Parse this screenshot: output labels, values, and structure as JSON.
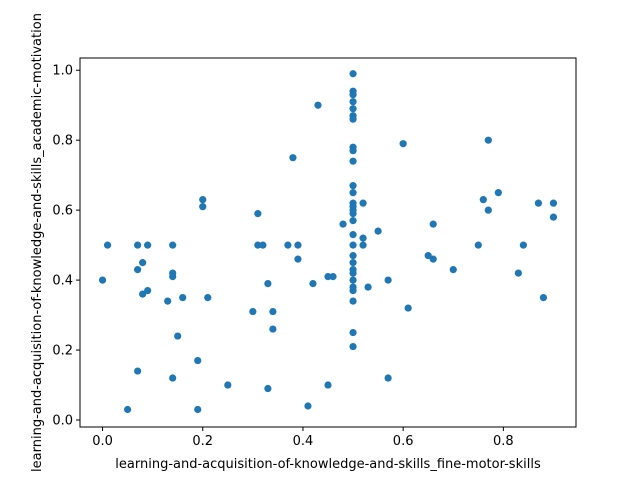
{
  "chart_data": {
    "type": "scatter",
    "xlabel": "learning-and-acquisition-of-knowledge-and-skills_fine-motor-skills",
    "ylabel": "learning-and-acquisition-of-knowledge-and-skills_academic-motivation",
    "xlim": [
      -0.045,
      0.945
    ],
    "ylim": [
      -0.02,
      1.035
    ],
    "x_ticks": [
      "0.0",
      "0.2",
      "0.4",
      "0.6",
      "0.8"
    ],
    "y_ticks": [
      "0.0",
      "0.2",
      "0.4",
      "0.6",
      "0.8",
      "1.0"
    ],
    "grid": false,
    "marker_color": "#1f77b4",
    "points": [
      [
        0.0,
        0.4
      ],
      [
        0.01,
        0.5
      ],
      [
        0.05,
        0.03
      ],
      [
        0.07,
        0.5
      ],
      [
        0.07,
        0.43
      ],
      [
        0.07,
        0.14
      ],
      [
        0.08,
        0.45
      ],
      [
        0.08,
        0.36
      ],
      [
        0.09,
        0.5
      ],
      [
        0.09,
        0.37
      ],
      [
        0.13,
        0.34
      ],
      [
        0.14,
        0.5
      ],
      [
        0.14,
        0.42
      ],
      [
        0.14,
        0.41
      ],
      [
        0.14,
        0.12
      ],
      [
        0.15,
        0.24
      ],
      [
        0.16,
        0.35
      ],
      [
        0.19,
        0.17
      ],
      [
        0.19,
        0.03
      ],
      [
        0.2,
        0.63
      ],
      [
        0.2,
        0.61
      ],
      [
        0.21,
        0.35
      ],
      [
        0.25,
        0.1
      ],
      [
        0.3,
        0.31
      ],
      [
        0.31,
        0.59
      ],
      [
        0.31,
        0.5
      ],
      [
        0.32,
        0.5
      ],
      [
        0.33,
        0.39
      ],
      [
        0.33,
        0.09
      ],
      [
        0.34,
        0.31
      ],
      [
        0.34,
        0.26
      ],
      [
        0.37,
        0.5
      ],
      [
        0.38,
        0.75
      ],
      [
        0.39,
        0.5
      ],
      [
        0.39,
        0.46
      ],
      [
        0.41,
        0.04
      ],
      [
        0.42,
        0.39
      ],
      [
        0.43,
        0.9
      ],
      [
        0.45,
        0.41
      ],
      [
        0.45,
        0.1
      ],
      [
        0.46,
        0.41
      ],
      [
        0.48,
        0.56
      ],
      [
        0.5,
        0.99
      ],
      [
        0.5,
        0.94
      ],
      [
        0.5,
        0.93
      ],
      [
        0.5,
        0.91
      ],
      [
        0.5,
        0.89
      ],
      [
        0.5,
        0.87
      ],
      [
        0.5,
        0.86
      ],
      [
        0.5,
        0.78
      ],
      [
        0.5,
        0.77
      ],
      [
        0.5,
        0.74
      ],
      [
        0.5,
        0.67
      ],
      [
        0.5,
        0.65
      ],
      [
        0.5,
        0.62
      ],
      [
        0.5,
        0.61
      ],
      [
        0.5,
        0.6
      ],
      [
        0.5,
        0.59
      ],
      [
        0.5,
        0.57
      ],
      [
        0.5,
        0.53
      ],
      [
        0.5,
        0.5
      ],
      [
        0.5,
        0.47
      ],
      [
        0.5,
        0.45
      ],
      [
        0.5,
        0.43
      ],
      [
        0.5,
        0.42
      ],
      [
        0.5,
        0.4
      ],
      [
        0.5,
        0.38
      ],
      [
        0.5,
        0.37
      ],
      [
        0.5,
        0.34
      ],
      [
        0.5,
        0.25
      ],
      [
        0.5,
        0.21
      ],
      [
        0.52,
        0.62
      ],
      [
        0.52,
        0.52
      ],
      [
        0.52,
        0.5
      ],
      [
        0.53,
        0.38
      ],
      [
        0.55,
        0.54
      ],
      [
        0.57,
        0.4
      ],
      [
        0.57,
        0.12
      ],
      [
        0.6,
        0.79
      ],
      [
        0.61,
        0.32
      ],
      [
        0.65,
        0.47
      ],
      [
        0.66,
        0.56
      ],
      [
        0.66,
        0.46
      ],
      [
        0.7,
        0.43
      ],
      [
        0.75,
        0.5
      ],
      [
        0.76,
        0.63
      ],
      [
        0.77,
        0.8
      ],
      [
        0.77,
        0.6
      ],
      [
        0.79,
        0.65
      ],
      [
        0.83,
        0.42
      ],
      [
        0.84,
        0.5
      ],
      [
        0.87,
        0.62
      ],
      [
        0.88,
        0.35
      ],
      [
        0.9,
        0.62
      ],
      [
        0.9,
        0.58
      ]
    ]
  }
}
